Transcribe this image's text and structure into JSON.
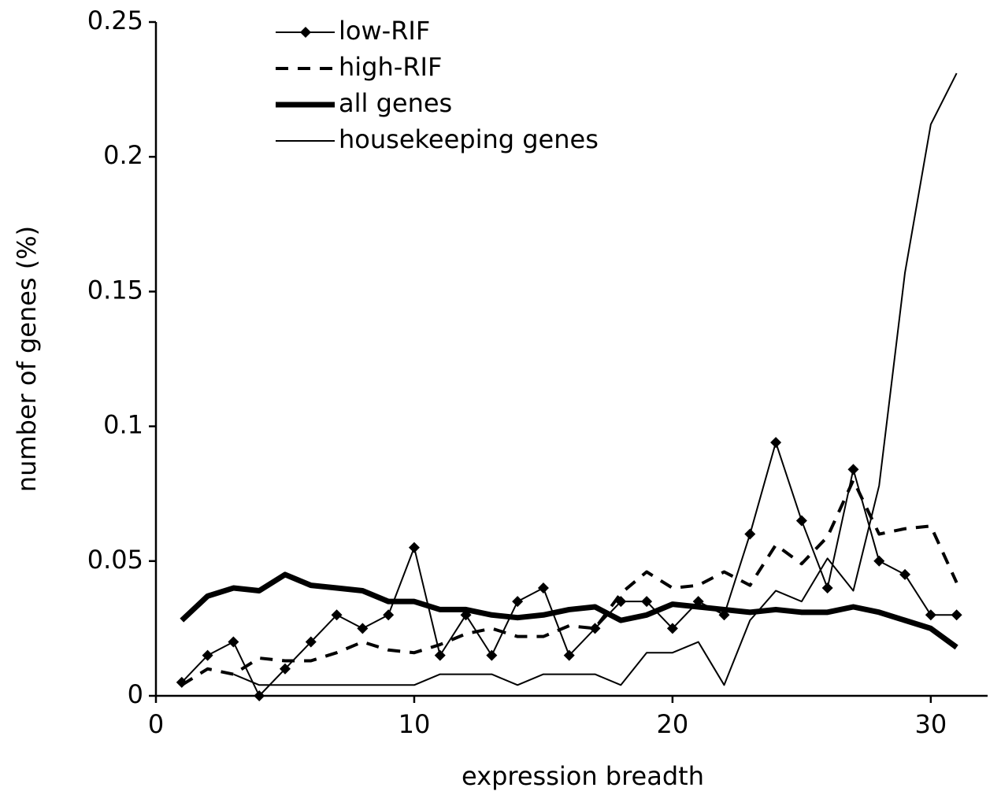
{
  "chart_data": {
    "type": "line",
    "xlabel": "expression breadth",
    "ylabel": "number of genes (%)",
    "x": [
      1,
      2,
      3,
      4,
      5,
      6,
      7,
      8,
      9,
      10,
      11,
      12,
      13,
      14,
      15,
      16,
      17,
      18,
      19,
      20,
      21,
      22,
      23,
      24,
      25,
      26,
      27,
      28,
      29,
      30,
      31
    ],
    "series": [
      {
        "name": "low-RIF",
        "color": "#000000",
        "line_width": 2,
        "line_style": "solid",
        "marker": "diamond",
        "values": [
          0.005,
          0.015,
          0.02,
          0,
          0.01,
          0.02,
          0.03,
          0.025,
          0.03,
          0.055,
          0.015,
          0.03,
          0.015,
          0.035,
          0.04,
          0.015,
          0.025,
          0.035,
          0.035,
          0.025,
          0.035,
          0.03,
          0.06,
          0.094,
          0.065,
          0.04,
          0.084,
          0.05,
          0.045,
          0.03,
          0.03
        ]
      },
      {
        "name": "high-RIF",
        "color": "#000000",
        "line_width": 4,
        "line_style": "dashed",
        "marker": "none",
        "values": [
          0.004,
          0.01,
          0.008,
          0.014,
          0.013,
          0.013,
          0.016,
          0.02,
          0.017,
          0.016,
          0.019,
          0.023,
          0.025,
          0.022,
          0.022,
          0.026,
          0.025,
          0.038,
          0.046,
          0.04,
          0.041,
          0.046,
          0.041,
          0.056,
          0.049,
          0.059,
          0.08,
          0.06,
          0.062,
          0.063,
          0.042
        ]
      },
      {
        "name": "all genes",
        "color": "#000000",
        "line_width": 7,
        "line_style": "solid",
        "marker": "none",
        "values": [
          0.028,
          0.037,
          0.04,
          0.039,
          0.045,
          0.041,
          0.04,
          0.039,
          0.035,
          0.035,
          0.032,
          0.032,
          0.03,
          0.029,
          0.03,
          0.032,
          0.033,
          0.028,
          0.03,
          0.034,
          0.033,
          0.032,
          0.031,
          0.032,
          0.031,
          0.031,
          0.033,
          0.031,
          0.028,
          0.025,
          0.018
        ]
      },
      {
        "name": "housekeeping genes",
        "color": "#000000",
        "line_width": 2,
        "line_style": "solid",
        "marker": "none",
        "values": [
          null,
          null,
          0.008,
          0.004,
          0.004,
          0.004,
          0.004,
          0.004,
          0.004,
          0.004,
          0.008,
          0.008,
          0.008,
          0.004,
          0.008,
          0.008,
          0.008,
          0.004,
          0.016,
          0.016,
          0.02,
          0.004,
          0.028,
          0.039,
          0.035,
          0.051,
          0.039,
          0.078,
          0.157,
          0.212,
          0.231
        ]
      }
    ],
    "xlim": [
      0,
      32.2
    ],
    "xticks": [
      0,
      10,
      20,
      30
    ],
    "ylim": [
      0,
      0.25
    ],
    "yticks": [
      0,
      0.05,
      0.1,
      0.15,
      0.2,
      0.25
    ],
    "grid": false,
    "legend": "upper left"
  }
}
